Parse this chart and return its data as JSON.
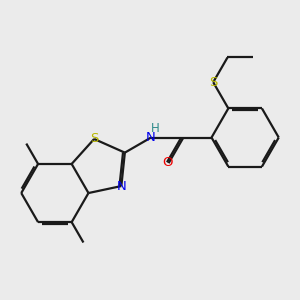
{
  "background_color": "#ebebeb",
  "bond_color": "#1a1a1a",
  "atom_colors": {
    "S": "#b8b800",
    "N": "#0000ee",
    "O": "#ee0000",
    "H": "#2e8b8b",
    "C": "#1a1a1a"
  },
  "figsize": [
    3.0,
    3.0
  ],
  "dpi": 100,
  "lw": 1.6,
  "double_off": 0.055,
  "font_size": 9.5
}
